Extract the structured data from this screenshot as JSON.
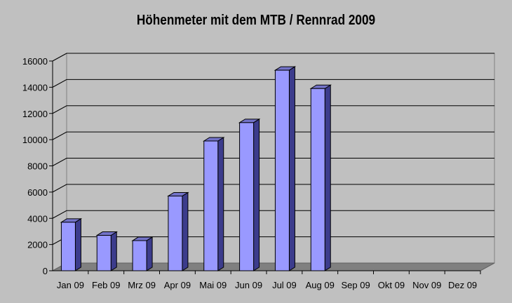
{
  "chart_data": {
    "type": "bar",
    "title": "Höhenmeter mit dem MTB / Rennrad 2009",
    "categories": [
      "Jan 09",
      "Feb 09",
      "Mrz 09",
      "Apr 09",
      "Mai 09",
      "Jun 09",
      "Jul 09",
      "Aug 09",
      "Sep 09",
      "Okt 09",
      "Nov 09",
      "Dez 09"
    ],
    "values": [
      3700,
      2700,
      2300,
      5700,
      9900,
      11300,
      15300,
      13900,
      0,
      0,
      0,
      0
    ],
    "yticks": [
      "0",
      "2000",
      "4000",
      "6000",
      "8000",
      "10000",
      "12000",
      "14000",
      "16000"
    ],
    "ylim": [
      0,
      16000
    ],
    "grid": true,
    "legend": "none",
    "colors": {
      "bar_front": "#9999ff",
      "bar_side": "#3c3c8c",
      "bar_top": "#7373c8",
      "wall": "#c0c0c0",
      "floor": "#808080"
    }
  }
}
